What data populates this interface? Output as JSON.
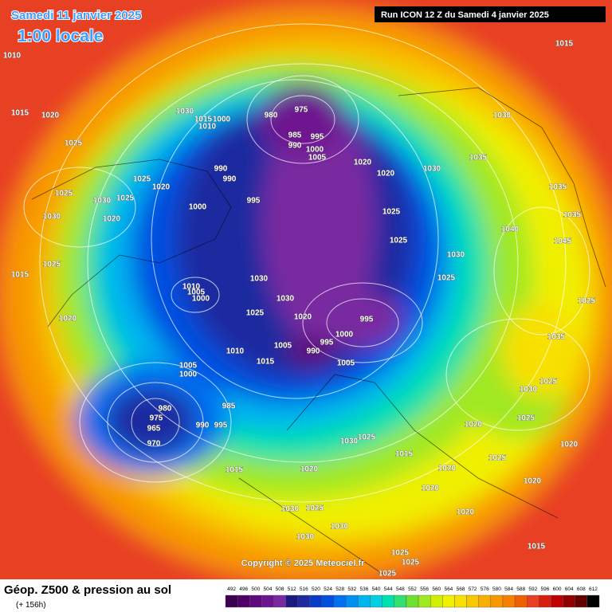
{
  "header": {
    "date": "Samedi 11 janvier 2025",
    "time": "1:00 locale",
    "run": "Run ICON 12 Z du Samedi 4 janvier 2025"
  },
  "copyright": "Copyright © 2025 Meteociel.fr",
  "footer": {
    "title": "Géop. Z500 & pression au sol",
    "subtitle": "(+ 156h)"
  },
  "legend": {
    "values": [
      492,
      496,
      500,
      504,
      508,
      512,
      516,
      520,
      524,
      528,
      532,
      536,
      540,
      544,
      548,
      552,
      556,
      560,
      564,
      568,
      572,
      576,
      580,
      584,
      588,
      592,
      596,
      600,
      604,
      608,
      612
    ],
    "colors": [
      "#3c0050",
      "#4e0066",
      "#5e0a7a",
      "#6e1490",
      "#7a2aa0",
      "#1a1a80",
      "#1e2aa0",
      "#0a3cc8",
      "#0050e0",
      "#0070f0",
      "#0090f0",
      "#00b4f0",
      "#00d0e0",
      "#00e0b0",
      "#30e070",
      "#70e030",
      "#a0e820",
      "#d0f000",
      "#f0f000",
      "#f8e000",
      "#f8c800",
      "#f8b000",
      "#f89800",
      "#f88000",
      "#f06000",
      "#e84020",
      "#d82010",
      "#c00000",
      "#900000",
      "#600000",
      "#000000"
    ]
  },
  "pressure_labels": [
    "1015",
    "1010",
    "1015",
    "1020",
    "1025",
    "1030",
    "1015",
    "1010",
    "1000",
    "975",
    "980",
    "985",
    "995",
    "990",
    "1000",
    "1005",
    "1020",
    "1020",
    "1030",
    "1030",
    "1035",
    "990",
    "990",
    "995",
    "1000",
    "1025",
    "1020",
    "1025",
    "1030",
    "1025",
    "1030",
    "1020",
    "1025",
    "1015",
    "1020",
    "1010",
    "1005",
    "1000",
    "1030",
    "1030",
    "1025",
    "1020",
    "995",
    "1000",
    "995",
    "990",
    "1005",
    "1010",
    "1015",
    "1005",
    "1005",
    "1000",
    "985",
    "980",
    "975",
    "965",
    "970",
    "990",
    "995",
    "1030",
    "1025",
    "1015",
    "1015",
    "1020",
    "1020",
    "1020",
    "1020",
    "1025",
    "1020",
    "1030",
    "1025",
    "1030",
    "1030",
    "1025",
    "1025",
    "1025",
    "1015",
    "1025",
    "1030",
    "1025",
    "1035",
    "1025",
    "1025",
    "1025",
    "1030",
    "1040",
    "1045",
    "1035",
    "1035",
    "1025",
    "1020",
    "1020"
  ]
}
